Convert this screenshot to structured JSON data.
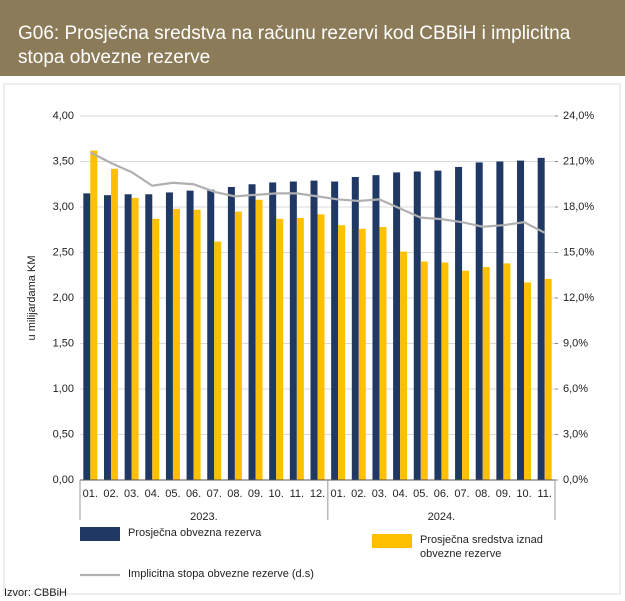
{
  "chart_data": {
    "type": "bar",
    "title": "G06: Prosječna sredstva na računu rezervi kod CBBiH i implicitna stopa obvezne rezerve",
    "ylabel": "u milijardama KM",
    "source": "Izvor: CBBiH",
    "categories": [
      "01.",
      "02.",
      "03.",
      "04.",
      "05.",
      "06.",
      "07.",
      "08.",
      "09.",
      "10.",
      "11.",
      "12.",
      "01.",
      "02.",
      "03.",
      "04.",
      "05.",
      "06.",
      "07.",
      "08.",
      "09.",
      "10.",
      "11."
    ],
    "year_groups": [
      {
        "label": "2023.",
        "count": 12
      },
      {
        "label": "2024.",
        "count": 11
      }
    ],
    "series": [
      {
        "name": "Prosječna obvezna rezerva",
        "color": "#1f3864",
        "values": [
          3.15,
          3.13,
          3.14,
          3.14,
          3.16,
          3.18,
          3.19,
          3.22,
          3.25,
          3.27,
          3.28,
          3.29,
          3.28,
          3.33,
          3.35,
          3.38,
          3.39,
          3.4,
          3.44,
          3.49,
          3.5,
          3.51,
          3.54
        ]
      },
      {
        "name": "Prosječna sredstva iznad obvezne rezerve",
        "color": "#ffc000",
        "values": [
          3.62,
          3.42,
          3.1,
          2.87,
          2.98,
          2.97,
          2.62,
          2.95,
          3.08,
          2.87,
          2.88,
          2.92,
          2.8,
          2.76,
          2.78,
          2.51,
          2.4,
          2.39,
          2.3,
          2.34,
          2.38,
          2.17,
          2.21
        ]
      },
      {
        "name": "Implicitna stopa obvezne rezerve (d.s)",
        "color": "#b0b0b0",
        "type": "line",
        "axis": "y2",
        "values": [
          21.6,
          20.9,
          20.3,
          19.4,
          19.6,
          19.5,
          19.0,
          18.7,
          18.8,
          18.9,
          18.9,
          18.7,
          18.5,
          18.4,
          18.5,
          17.9,
          17.3,
          17.2,
          17.0,
          16.7,
          16.8,
          17.0,
          16.3
        ]
      }
    ],
    "ylim": [
      0,
      4
    ],
    "yticks": [
      {
        "value": 0,
        "label": "0,00"
      },
      {
        "value": 0.5,
        "label": "0,50"
      },
      {
        "value": 1,
        "label": "1,00"
      },
      {
        "value": 1.5,
        "label": "1,50"
      },
      {
        "value": 2,
        "label": "2,00"
      },
      {
        "value": 2.5,
        "label": "2,50"
      },
      {
        "value": 3,
        "label": "3,00"
      },
      {
        "value": 3.5,
        "label": "3,50"
      },
      {
        "value": 4,
        "label": "4,00"
      }
    ],
    "y2lim": [
      0,
      24
    ],
    "y2ticks": [
      {
        "value": 0,
        "label": "0,0%"
      },
      {
        "value": 3,
        "label": "3,0%"
      },
      {
        "value": 6,
        "label": "6,0%"
      },
      {
        "value": 9,
        "label": "9,0%"
      },
      {
        "value": 12,
        "label": "12,0%"
      },
      {
        "value": 15,
        "label": "15,0%"
      },
      {
        "value": 18,
        "label": "18,0%"
      },
      {
        "value": 21,
        "label": "21,0%"
      },
      {
        "value": 24,
        "label": "24,0%"
      }
    ],
    "grid": true
  }
}
